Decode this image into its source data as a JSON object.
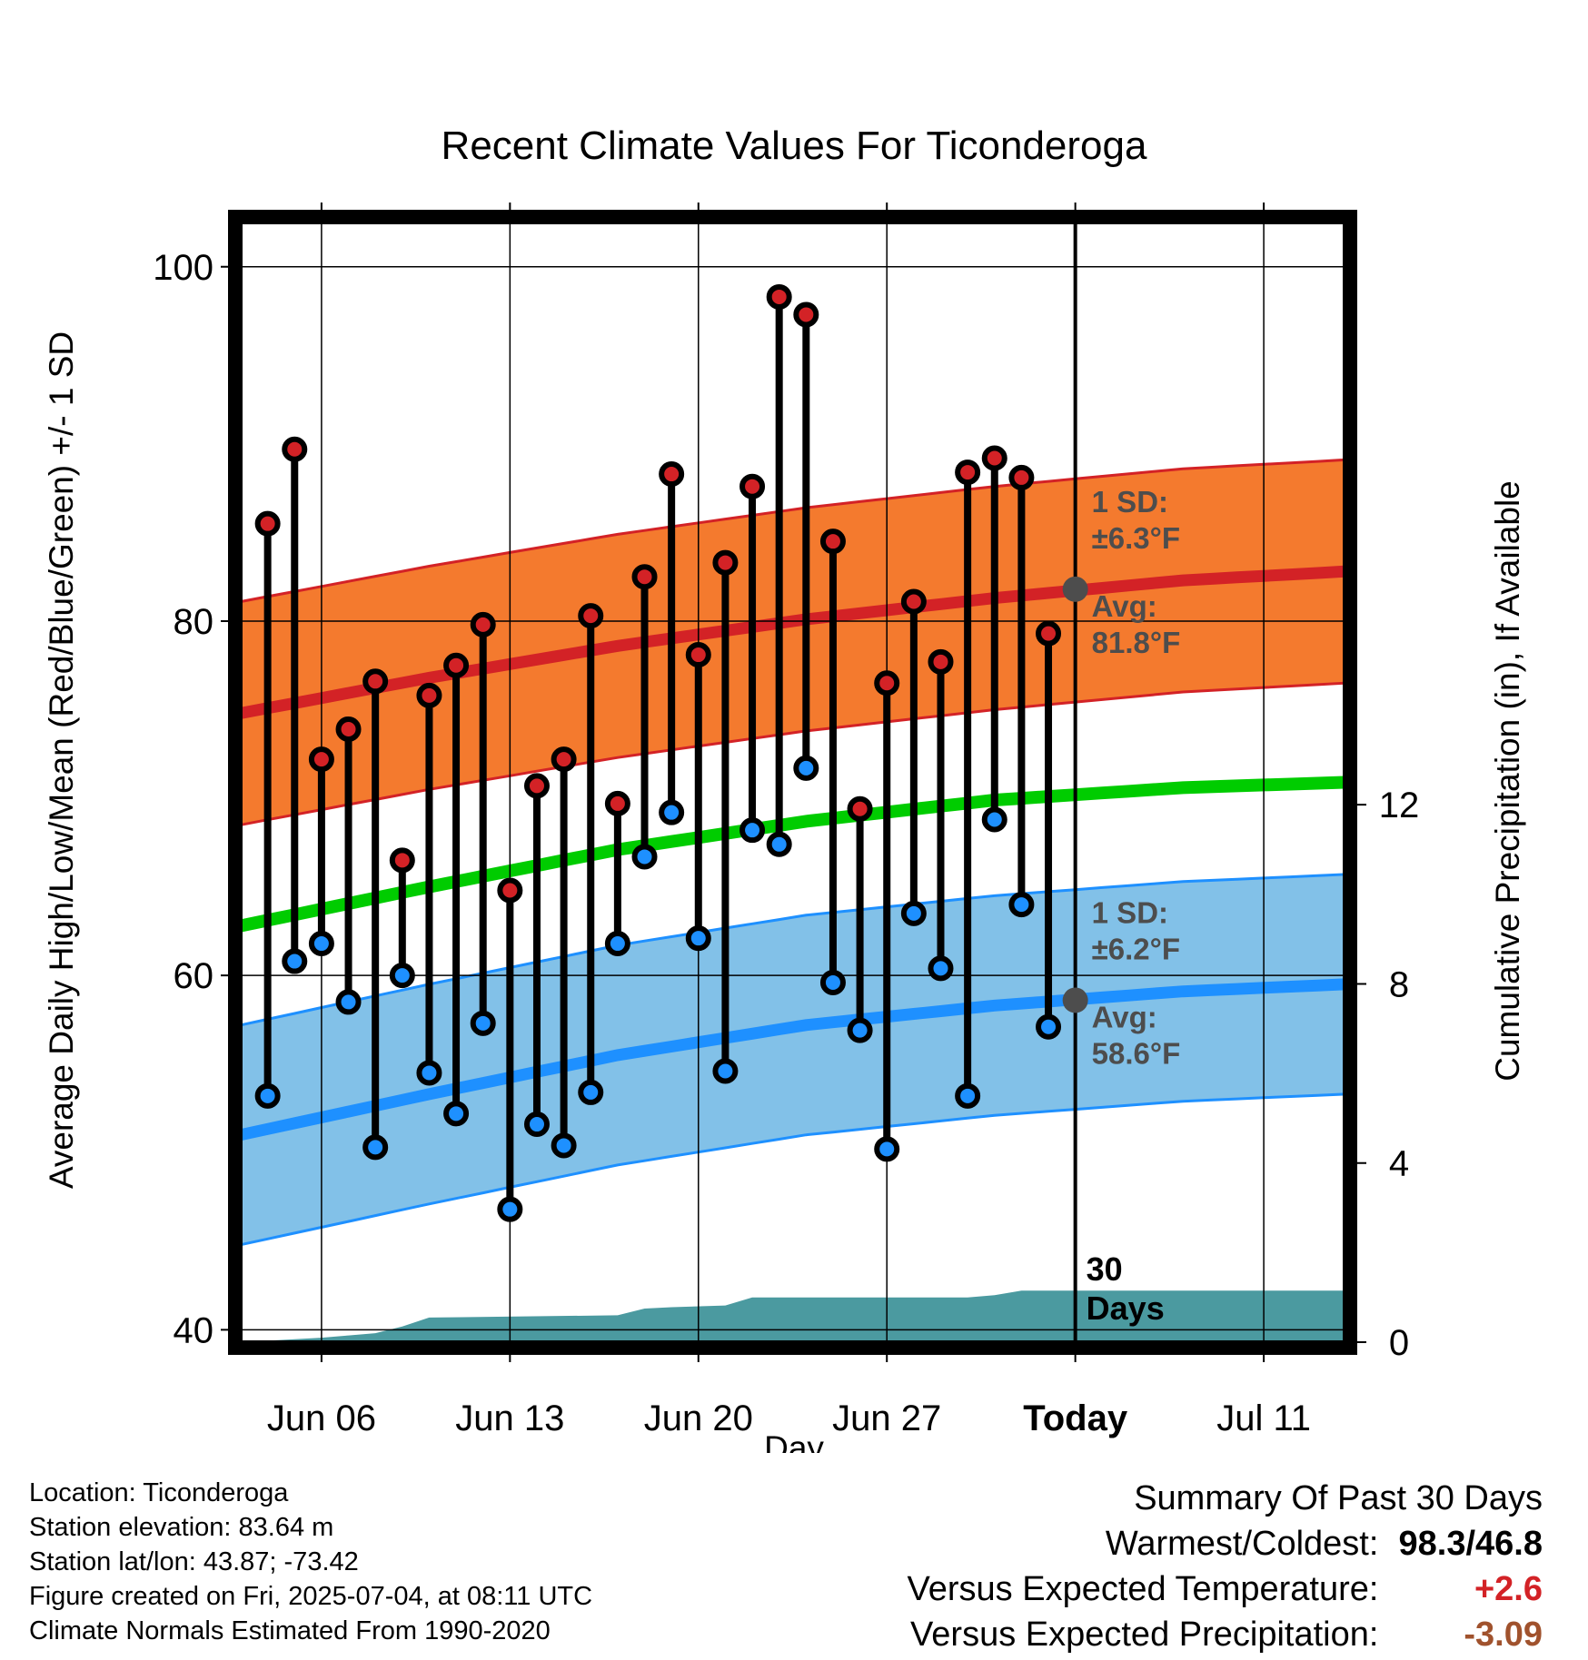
{
  "chart_data": {
    "type": "line",
    "title": "Recent Climate Values For Ticonderoga",
    "xlabel": "Day",
    "ylabel": "Average Daily High/Low/Mean (Red/Blue/Green) +/- 1 SD",
    "ylabel_right": "Cumulative Precipitation (in), If Available",
    "ylim": [
      39.3,
      102.5
    ],
    "ylim_right": [
      0,
      25
    ],
    "yticks": [
      40,
      60,
      80,
      100
    ],
    "yticks_right": [
      0,
      4,
      8,
      12
    ],
    "x_tick_labels": [
      "Jun 06",
      "Jun 13",
      "Jun 20",
      "Jun 27",
      "Today",
      "Jul 11"
    ],
    "x_tick_dates": [
      "2025-06-06",
      "2025-06-13",
      "2025-06-20",
      "2025-06-27",
      "2025-07-04",
      "2025-07-11"
    ],
    "xlim": [
      "2025-06-03",
      "2025-07-14"
    ],
    "grid": true,
    "colors": {
      "high": "#d32226",
      "high_band": "#f47a2e",
      "low": "#1e90ff",
      "low_band": "#82c1e8",
      "mean": "#00cc00",
      "precip": "#4b9aa0",
      "avg_marker": "#4d4d4d"
    },
    "observed": {
      "dates": [
        "2025-06-04",
        "2025-06-05",
        "2025-06-06",
        "2025-06-07",
        "2025-06-08",
        "2025-06-09",
        "2025-06-10",
        "2025-06-11",
        "2025-06-12",
        "2025-06-13",
        "2025-06-14",
        "2025-06-15",
        "2025-06-16",
        "2025-06-17",
        "2025-06-18",
        "2025-06-19",
        "2025-06-20",
        "2025-06-21",
        "2025-06-22",
        "2025-06-23",
        "2025-06-24",
        "2025-06-25",
        "2025-06-26",
        "2025-06-27",
        "2025-06-28",
        "2025-06-29",
        "2025-06-30",
        "2025-07-01",
        "2025-07-02",
        "2025-07-03"
      ],
      "high": [
        85.5,
        89.7,
        72.2,
        73.9,
        76.6,
        66.5,
        75.8,
        77.5,
        79.8,
        64.8,
        70.7,
        72.2,
        80.3,
        69.7,
        82.5,
        88.3,
        78.1,
        83.3,
        87.6,
        98.3,
        97.3,
        84.5,
        69.4,
        76.5,
        81.1,
        77.7,
        88.4,
        89.2,
        88.1,
        79.3
      ],
      "low": [
        53.2,
        60.8,
        61.8,
        58.5,
        50.3,
        60.0,
        54.5,
        52.2,
        57.3,
        46.8,
        51.6,
        50.4,
        53.4,
        61.8,
        66.7,
        69.2,
        62.1,
        54.6,
        68.2,
        67.4,
        71.7,
        59.6,
        56.9,
        50.2,
        63.5,
        60.4,
        53.2,
        68.8,
        64.0,
        57.1
      ]
    },
    "normals": {
      "dates": [
        "2025-06-03",
        "2025-06-10",
        "2025-06-17",
        "2025-06-24",
        "2025-07-01",
        "2025-07-08",
        "2025-07-14"
      ],
      "high_avg": [
        74.8,
        76.8,
        78.6,
        80.1,
        81.3,
        82.3,
        82.8
      ],
      "high_sd": 6.3,
      "low_avg": [
        51.0,
        53.3,
        55.5,
        57.2,
        58.3,
        59.1,
        59.5
      ],
      "low_sd": 6.2,
      "mean_avg": [
        62.8,
        65.0,
        67.1,
        68.7,
        69.9,
        70.6,
        70.9
      ]
    },
    "precip_cumulative": {
      "dates": [
        "2025-06-03",
        "2025-06-06",
        "2025-06-07",
        "2025-06-08",
        "2025-06-09",
        "2025-06-10",
        "2025-06-17",
        "2025-06-18",
        "2025-06-19",
        "2025-06-21",
        "2025-06-22",
        "2025-06-30",
        "2025-07-01",
        "2025-07-02",
        "2025-07-14"
      ],
      "values": [
        0.0,
        0.1,
        0.15,
        0.2,
        0.35,
        0.55,
        0.6,
        0.75,
        0.78,
        0.82,
        1.0,
        1.0,
        1.05,
        1.15,
        1.15
      ]
    },
    "today_marker": {
      "label": "Today",
      "date": "2025-07-04",
      "high_avg": 81.8,
      "low_avg": 58.6,
      "high_sd_label": "1 SD:",
      "high_sd_value": "±6.3°F",
      "high_avg_label": "Avg:",
      "high_avg_value": "81.8°F",
      "low_sd_label": "1 SD:",
      "low_sd_value": "±6.2°F",
      "low_avg_label": "Avg:",
      "low_avg_value": "58.6°F",
      "precip_label_1": "30",
      "precip_label_2": "Days"
    }
  },
  "footer": {
    "location": "Location: Ticonderoga",
    "elevation": "Station elevation: 83.64 m",
    "latlon": "Station lat/lon: 43.87; -73.42",
    "created": "Figure created on Fri, 2025-07-04, at 08:11 UTC",
    "normals": "Climate Normals Estimated From 1990-2020"
  },
  "summary": {
    "heading": "Summary Of Past 30 Days",
    "warm_cold_label": "Warmest/Coldest:",
    "warm_cold_value": "98.3/46.8",
    "temp_label": "Versus Expected Temperature:",
    "temp_value": "+2.6",
    "temp_color": "#d32226",
    "precip_label": "Versus Expected Precipitation:",
    "precip_value": "-3.09",
    "precip_color": "#a0522d"
  }
}
